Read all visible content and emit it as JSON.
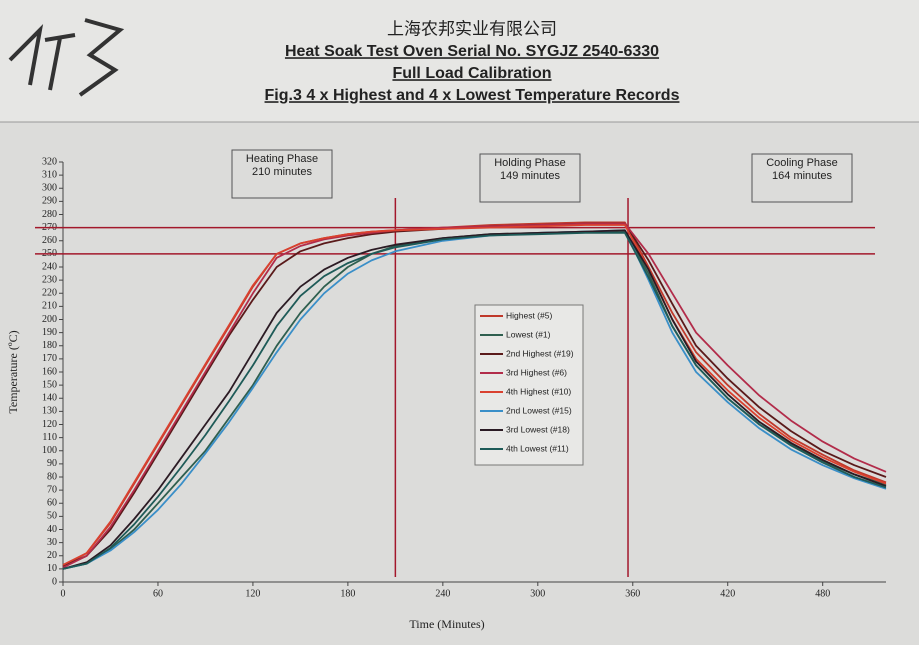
{
  "chart_data": {
    "type": "line",
    "title": "上海农邦实业有限公司",
    "subtitles": [
      "Heat Soak Test Oven Serial No. SYGJZ 2540-6330",
      "Full Load Calibration",
      "Fig.3 4 x Highest and 4 x Lowest Temperature Records"
    ],
    "x_label": "Time (Minutes)",
    "y_label": "Temperature (ºC)",
    "xlim": [
      0,
      520
    ],
    "ylim": [
      0,
      320
    ],
    "xticks": [
      0,
      60,
      120,
      180,
      240,
      300,
      360,
      420,
      480
    ],
    "yticks": [
      0,
      10,
      20,
      30,
      40,
      50,
      60,
      70,
      80,
      90,
      100,
      110,
      120,
      130,
      140,
      150,
      160,
      170,
      180,
      190,
      200,
      210,
      220,
      230,
      240,
      250,
      260,
      270,
      280,
      290,
      300,
      310,
      320
    ],
    "annotations": [
      {
        "title": "Heating Phase",
        "subtitle": "210 minutes"
      },
      {
        "title": "Holding Phase",
        "subtitle": "149 minutes"
      },
      {
        "title": "Cooling Phase",
        "subtitle": "164 minutes"
      }
    ],
    "hlines": [
      250,
      270
    ],
    "vlines": [
      210,
      357
    ],
    "ref_color": "#a3182b",
    "x": [
      0,
      15,
      30,
      45,
      60,
      75,
      90,
      105,
      120,
      135,
      150,
      165,
      180,
      195,
      210,
      240,
      270,
      300,
      330,
      355,
      370,
      385,
      400,
      420,
      440,
      460,
      480,
      500,
      520
    ],
    "series": [
      {
        "name": "Highest (#5)",
        "color": "#c0392b",
        "values": [
          12,
          22,
          45,
          75,
          105,
          135,
          165,
          195,
          225,
          250,
          258,
          262,
          265,
          267,
          268,
          270,
          272,
          273,
          274,
          274,
          240,
          205,
          175,
          150,
          128,
          110,
          97,
          85,
          76
        ]
      },
      {
        "name": "Lowest (#1)",
        "color": "#2f5f4f",
        "values": [
          10,
          14,
          25,
          40,
          60,
          80,
          100,
          125,
          150,
          180,
          205,
          225,
          240,
          250,
          256,
          262,
          265,
          266,
          267,
          267,
          235,
          195,
          165,
          140,
          120,
          105,
          92,
          82,
          74
        ]
      },
      {
        "name": "2nd Highest (#19)",
        "color": "#5a1a1a",
        "values": [
          12,
          20,
          40,
          68,
          98,
          128,
          158,
          188,
          215,
          240,
          252,
          258,
          262,
          265,
          267,
          269,
          271,
          272,
          273,
          273,
          245,
          212,
          180,
          155,
          133,
          115,
          100,
          89,
          80
        ]
      },
      {
        "name": "3rd Highest (#6)",
        "color": "#b22c4a",
        "values": [
          11,
          20,
          42,
          70,
          100,
          130,
          160,
          190,
          220,
          247,
          256,
          261,
          264,
          266,
          268,
          270,
          271,
          272,
          273,
          273,
          250,
          220,
          190,
          165,
          142,
          123,
          107,
          94,
          84
        ]
      },
      {
        "name": "4th Highest (#10)",
        "color": "#d9412f",
        "values": [
          13,
          22,
          46,
          76,
          106,
          136,
          166,
          196,
          226,
          250,
          258,
          262,
          265,
          267,
          268,
          269,
          270,
          271,
          272,
          272,
          238,
          200,
          170,
          146,
          125,
          108,
          95,
          84,
          75
        ]
      },
      {
        "name": "2nd Lowest (#15)",
        "color": "#3a8fc8",
        "values": [
          10,
          14,
          24,
          38,
          55,
          75,
          98,
          122,
          148,
          175,
          200,
          220,
          235,
          245,
          252,
          260,
          264,
          266,
          267,
          268,
          230,
          190,
          160,
          137,
          117,
          101,
          89,
          79,
          71
        ]
      },
      {
        "name": "3rd Lowest (#18)",
        "color": "#2b1b24",
        "values": [
          10,
          15,
          28,
          48,
          70,
          95,
          120,
          145,
          175,
          205,
          225,
          238,
          247,
          253,
          257,
          262,
          265,
          266,
          267,
          268,
          238,
          200,
          168,
          143,
          122,
          106,
          93,
          82,
          73
        ]
      },
      {
        "name": "4th Lowest (#11)",
        "color": "#1e5b58",
        "values": [
          10,
          14,
          26,
          44,
          65,
          88,
          112,
          138,
          165,
          195,
          218,
          233,
          243,
          250,
          255,
          261,
          264,
          265,
          266,
          266,
          232,
          195,
          165,
          140,
          120,
          104,
          91,
          80,
          72
        ]
      }
    ]
  }
}
